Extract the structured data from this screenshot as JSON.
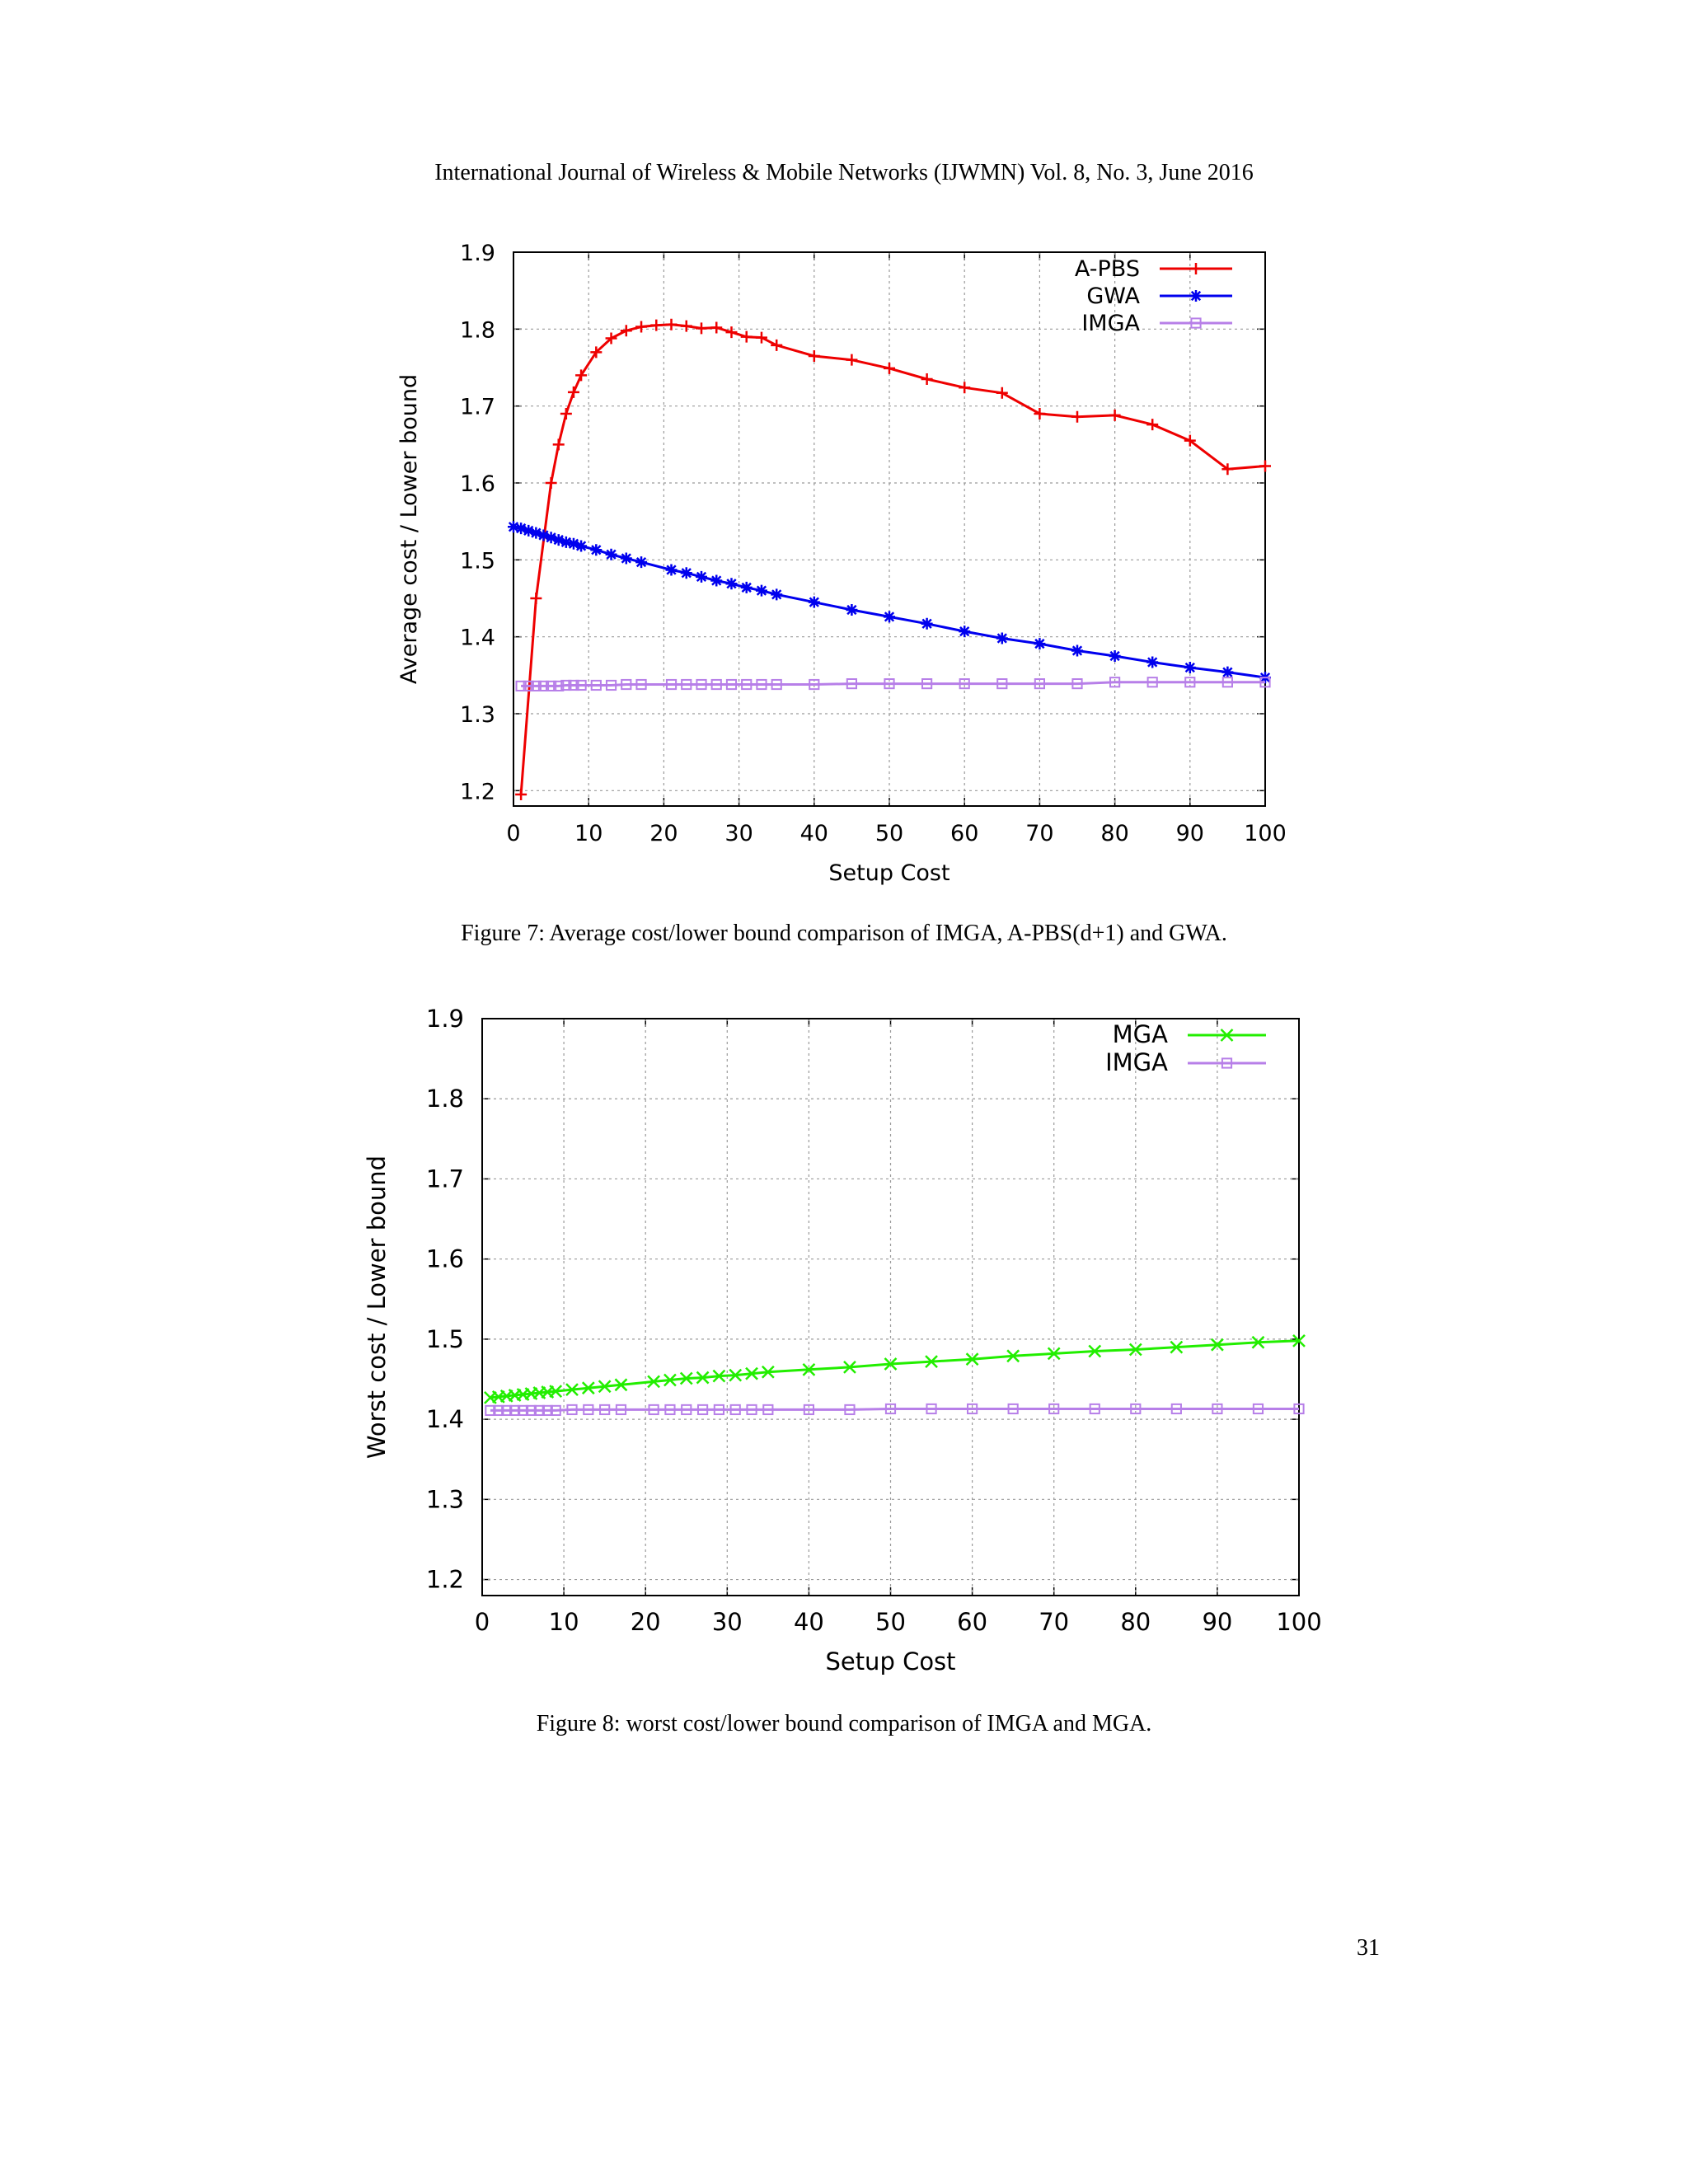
{
  "header": "International Journal of Wireless & Mobile Networks (IJWMN) Vol. 8, No. 3, June 2016",
  "captions": [
    "Figure 7: Average cost/lower bound comparison of IMGA, A-PBS(d+1) and GWA.",
    "Figure 8: worst cost/lower bound comparison of IMGA and MGA."
  ],
  "page_number": "31",
  "chart_data": [
    {
      "type": "line",
      "title": "",
      "xlabel": "Setup Cost",
      "ylabel": "Average cost / Lower bound",
      "xlim": [
        0,
        100
      ],
      "ylim": [
        1.18,
        1.9
      ],
      "xticks": [
        0,
        10,
        20,
        30,
        40,
        50,
        60,
        70,
        80,
        90,
        100
      ],
      "yticks": [
        1.2,
        1.3,
        1.4,
        1.5,
        1.6,
        1.7,
        1.8,
        1.9
      ],
      "grid": true,
      "legend": "top-right",
      "series": [
        {
          "name": "A-PBS",
          "color": "#ee0000",
          "marker": "plus",
          "x": [
            1,
            3,
            5,
            6,
            7,
            8,
            9,
            11,
            13,
            15,
            17,
            19,
            21,
            23,
            25,
            27,
            29,
            31,
            33,
            35,
            40,
            45,
            50,
            55,
            60,
            65,
            70,
            75,
            80,
            85,
            90,
            95,
            100
          ],
          "y": [
            1.195,
            1.45,
            1.6,
            1.65,
            1.69,
            1.718,
            1.74,
            1.77,
            1.788,
            1.798,
            1.803,
            1.805,
            1.806,
            1.804,
            1.801,
            1.802,
            1.796,
            1.79,
            1.789,
            1.779,
            1.765,
            1.76,
            1.749,
            1.735,
            1.724,
            1.717,
            1.69,
            1.686,
            1.688,
            1.676,
            1.655,
            1.618,
            1.622
          ]
        },
        {
          "name": "GWA",
          "color": "#0000ee",
          "marker": "star",
          "x": [
            0,
            1,
            2,
            3,
            4,
            5,
            6,
            7,
            8,
            9,
            11,
            13,
            15,
            17,
            21,
            23,
            25,
            27,
            29,
            31,
            33,
            35,
            40,
            45,
            50,
            55,
            60,
            65,
            70,
            75,
            80,
            85,
            90,
            95,
            100
          ],
          "y": [
            1.543,
            1.541,
            1.538,
            1.535,
            1.532,
            1.529,
            1.526,
            1.523,
            1.521,
            1.518,
            1.513,
            1.507,
            1.502,
            1.497,
            1.487,
            1.483,
            1.478,
            1.473,
            1.469,
            1.464,
            1.46,
            1.455,
            1.445,
            1.435,
            1.426,
            1.417,
            1.407,
            1.398,
            1.391,
            1.382,
            1.375,
            1.367,
            1.36,
            1.354,
            1.347
          ]
        },
        {
          "name": "IMGA",
          "color": "#b77fe8",
          "marker": "square",
          "x": [
            1,
            2,
            3,
            4,
            5,
            6,
            7,
            8,
            9,
            11,
            13,
            15,
            17,
            21,
            23,
            25,
            27,
            29,
            31,
            33,
            35,
            40,
            45,
            50,
            55,
            60,
            65,
            70,
            75,
            80,
            85,
            90,
            95,
            100
          ],
          "y": [
            1.336,
            1.336,
            1.336,
            1.336,
            1.336,
            1.336,
            1.337,
            1.337,
            1.337,
            1.337,
            1.337,
            1.338,
            1.338,
            1.338,
            1.338,
            1.338,
            1.338,
            1.338,
            1.338,
            1.338,
            1.338,
            1.338,
            1.339,
            1.339,
            1.339,
            1.339,
            1.339,
            1.339,
            1.339,
            1.341,
            1.341,
            1.341,
            1.341,
            1.341
          ]
        }
      ]
    },
    {
      "type": "line",
      "title": "",
      "xlabel": "Setup Cost",
      "ylabel": "Worst cost / Lower bound",
      "xlim": [
        0,
        100
      ],
      "ylim": [
        1.18,
        1.9
      ],
      "xticks": [
        0,
        10,
        20,
        30,
        40,
        50,
        60,
        70,
        80,
        90,
        100
      ],
      "yticks": [
        1.2,
        1.3,
        1.4,
        1.5,
        1.6,
        1.7,
        1.8,
        1.9
      ],
      "grid": true,
      "legend": "top-right",
      "series": [
        {
          "name": "MGA",
          "color": "#22ee00",
          "marker": "cross",
          "x": [
            1,
            2,
            3,
            4,
            5,
            6,
            7,
            8,
            9,
            11,
            13,
            15,
            17,
            21,
            23,
            25,
            27,
            29,
            31,
            33,
            35,
            40,
            45,
            50,
            55,
            60,
            65,
            70,
            75,
            80,
            85,
            90,
            95,
            100
          ],
          "y": [
            1.427,
            1.428,
            1.429,
            1.43,
            1.431,
            1.432,
            1.433,
            1.434,
            1.435,
            1.437,
            1.439,
            1.441,
            1.443,
            1.447,
            1.449,
            1.451,
            1.452,
            1.454,
            1.455,
            1.457,
            1.459,
            1.462,
            1.465,
            1.469,
            1.472,
            1.475,
            1.479,
            1.482,
            1.485,
            1.487,
            1.49,
            1.493,
            1.496,
            1.498
          ]
        },
        {
          "name": "IMGA",
          "color": "#b77fe8",
          "marker": "square",
          "x": [
            1,
            2,
            3,
            4,
            5,
            6,
            7,
            8,
            9,
            11,
            13,
            15,
            17,
            21,
            23,
            25,
            27,
            29,
            31,
            33,
            35,
            40,
            45,
            50,
            55,
            60,
            65,
            70,
            75,
            80,
            85,
            90,
            95,
            100
          ],
          "y": [
            1.411,
            1.411,
            1.411,
            1.411,
            1.411,
            1.411,
            1.411,
            1.411,
            1.411,
            1.412,
            1.412,
            1.412,
            1.412,
            1.412,
            1.412,
            1.412,
            1.412,
            1.412,
            1.412,
            1.412,
            1.412,
            1.412,
            1.412,
            1.413,
            1.413,
            1.413,
            1.413,
            1.413,
            1.413,
            1.413,
            1.413,
            1.413,
            1.413,
            1.413
          ]
        }
      ]
    }
  ]
}
